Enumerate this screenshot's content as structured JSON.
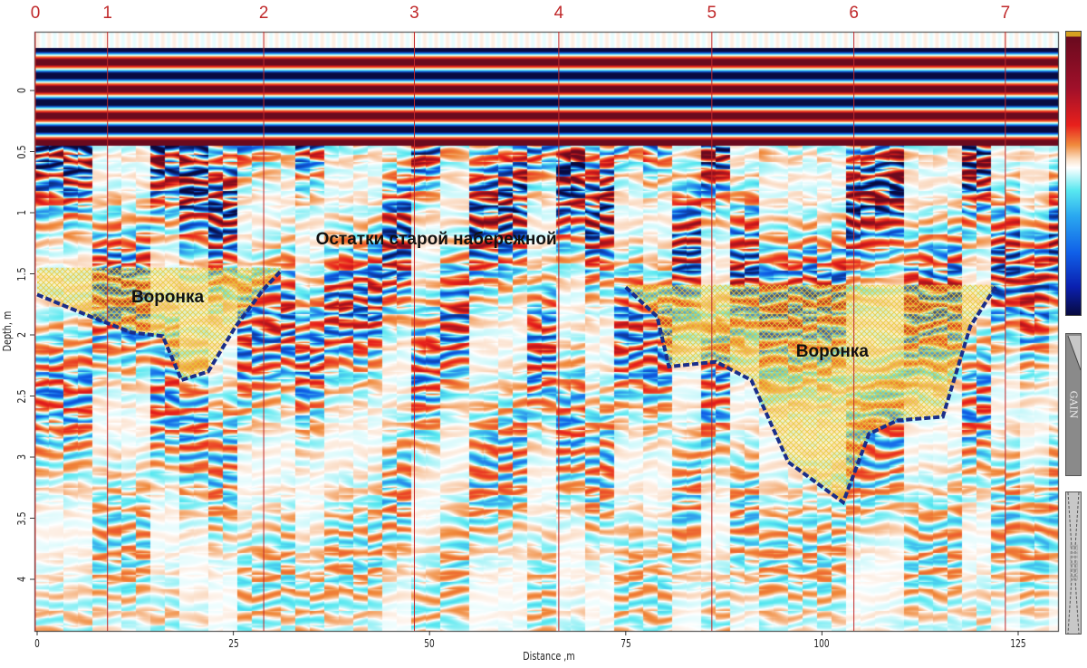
{
  "chart_data": {
    "type": "heatmap",
    "subtype": "ground-penetrating radar radargram",
    "xlabel": "Distance ,m",
    "ylabel": "Depth, m",
    "xlim": [
      0,
      130
    ],
    "ylim": [
      4.4,
      -0.48
    ],
    "x_ticks": [
      0,
      25,
      50,
      75,
      100,
      125
    ],
    "y_ticks": [
      0,
      0.5,
      1,
      1.5,
      2,
      2.5,
      3,
      3.5,
      4
    ],
    "y_tick_labels": [
      "0",
      "0.5",
      "1",
      "1.5",
      "2",
      "2.5",
      "3",
      "3.5",
      "4"
    ],
    "colormap": [
      "#080a40",
      "#1060e8",
      "#58e8f0",
      "#ffffff",
      "#f08a3c",
      "#e8201c",
      "#6a0a1e"
    ],
    "markers": [
      {
        "label": "0",
        "distance": 0
      },
      {
        "label": "1",
        "distance": 9.2
      },
      {
        "label": "2",
        "distance": 29.1
      },
      {
        "label": "3",
        "distance": 48.3
      },
      {
        "label": "4",
        "distance": 66.7
      },
      {
        "label": "5",
        "distance": 86.2
      },
      {
        "label": "6",
        "distance": 104.3
      },
      {
        "label": "7",
        "distance": 123.6
      }
    ],
    "marker_color": "#c0282a",
    "annotations": [
      {
        "text": "Воронка",
        "distance": 12,
        "depth": 1.7
      },
      {
        "text": "Остатки старой набережной",
        "distance": 35.5,
        "depth": 1.23
      },
      {
        "text": "Воронка",
        "distance": 96.7,
        "depth": 2.15
      }
    ],
    "anomalies": [
      {
        "label_ref": 0,
        "top_depth": 1.45,
        "boundary": [
          [
            0,
            1.67
          ],
          [
            6.8,
            1.85
          ],
          [
            12,
            1.98
          ],
          [
            16,
            2.01
          ],
          [
            18.4,
            2.37
          ],
          [
            21.8,
            2.3
          ],
          [
            25.3,
            1.93
          ],
          [
            28.8,
            1.63
          ],
          [
            31,
            1.48
          ]
        ]
      },
      {
        "label_ref": 2,
        "top_depth": 1.59,
        "boundary": [
          [
            75,
            1.61
          ],
          [
            79,
            1.85
          ],
          [
            80.5,
            2.26
          ],
          [
            86.5,
            2.22
          ],
          [
            91,
            2.37
          ],
          [
            95.7,
            3.04
          ],
          [
            102.7,
            3.37
          ],
          [
            106,
            2.81
          ],
          [
            109.6,
            2.7
          ],
          [
            115.4,
            2.67
          ],
          [
            118.9,
            1.93
          ],
          [
            122.3,
            1.59
          ]
        ]
      }
    ],
    "boundary_color": "#1a2e8a",
    "fill_color": "#f0d040"
  },
  "side_panels": {
    "gain_label": "GAIN",
    "filter_label": "FILTER"
  }
}
